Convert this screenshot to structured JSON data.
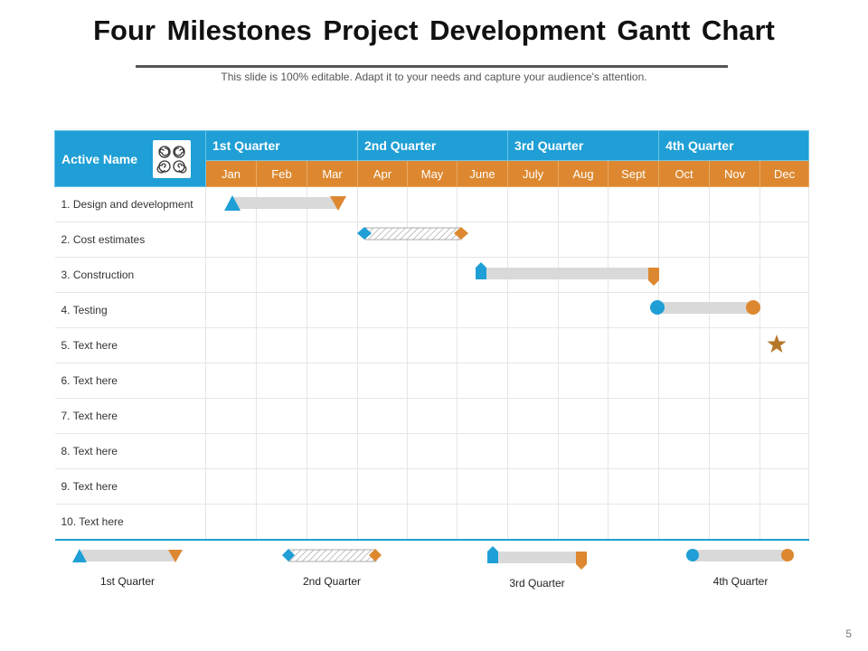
{
  "title": "Four Milestones Project Development Gantt Chart",
  "subtitle": "This slide is 100% editable. Adapt it to your needs and capture your audience's attention.",
  "header": {
    "active_name": "Active Name",
    "quarters": [
      "1st Quarter",
      "2nd Quarter",
      "3rd Quarter",
      "4th Quarter"
    ],
    "months": [
      "Jan",
      "Feb",
      "Mar",
      "Apr",
      "May",
      "June",
      "July",
      "Aug",
      "Sept",
      "Oct",
      "Nov",
      "Dec"
    ]
  },
  "tasks": [
    "1. Design and development",
    "2. Cost estimates",
    "3. Construction",
    "4. Testing",
    "5. Text here",
    "6. Text here",
    "7. Text here",
    "8. Text here",
    "9. Text here",
    "10. Text here"
  ],
  "legend": [
    "1st Quarter",
    "2nd Quarter",
    "3rd Quarter",
    "4th Quarter"
  ],
  "page_number": "5",
  "colors": {
    "blue": "#1f9fd5",
    "orange": "#dd8830",
    "bar_gray": "#d9d9d9",
    "star": "#b5782a"
  }
}
